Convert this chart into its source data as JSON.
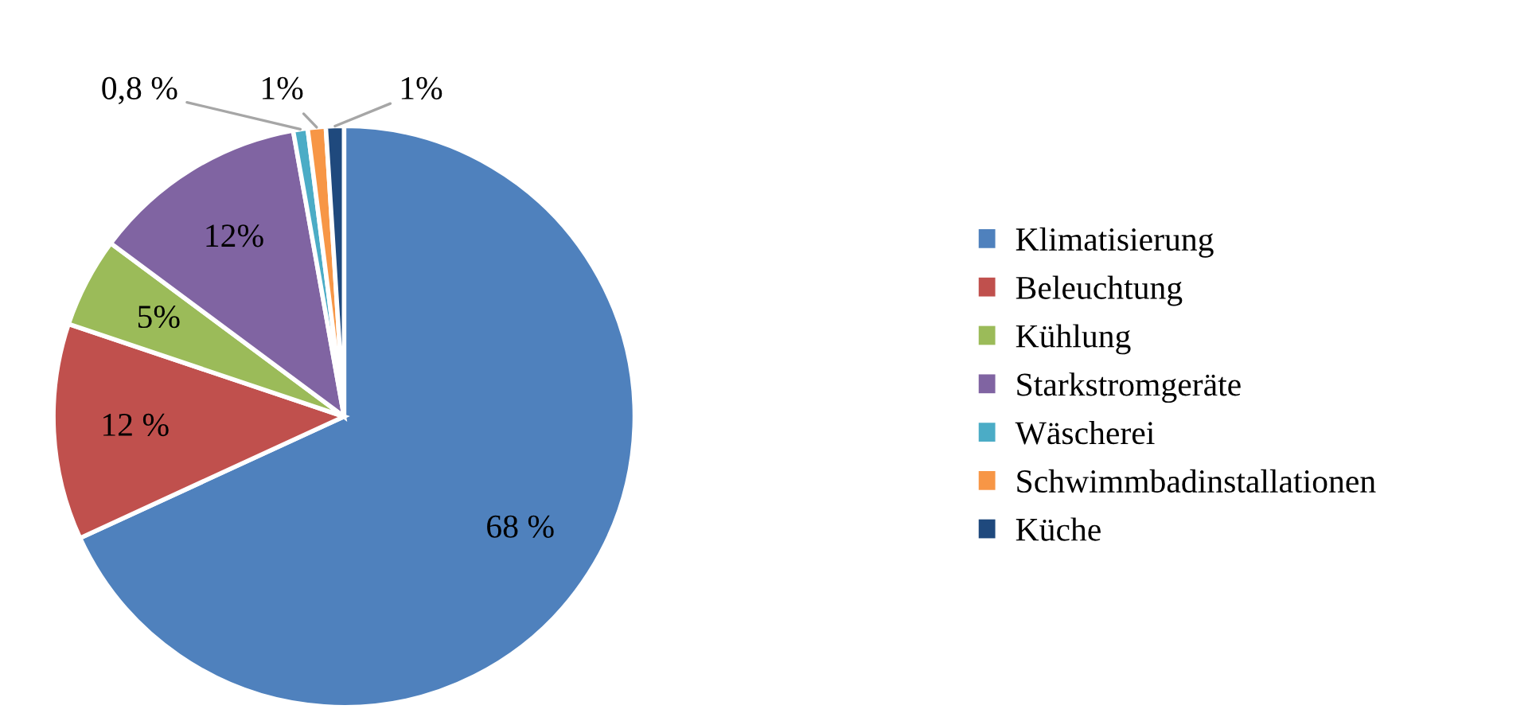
{
  "chart_data": {
    "type": "pie",
    "categories": [
      "Klimatisierung",
      "Beleuchtung",
      "Kühlung",
      "Starkstromgeräte",
      "Wäscherei",
      "Schwimmbadinstallationen",
      "Küche"
    ],
    "values": [
      68,
      12,
      5,
      12,
      0.8,
      1,
      1
    ],
    "colors": [
      "#4f81bd",
      "#c0504d",
      "#9bbb59",
      "#8064a2",
      "#4bacc6",
      "#f79646",
      "#1f497d"
    ],
    "value_labels": [
      "68 %",
      "12 %",
      "5%",
      "12%",
      "0,8 %",
      "1%",
      "1%"
    ],
    "legend": "right"
  }
}
